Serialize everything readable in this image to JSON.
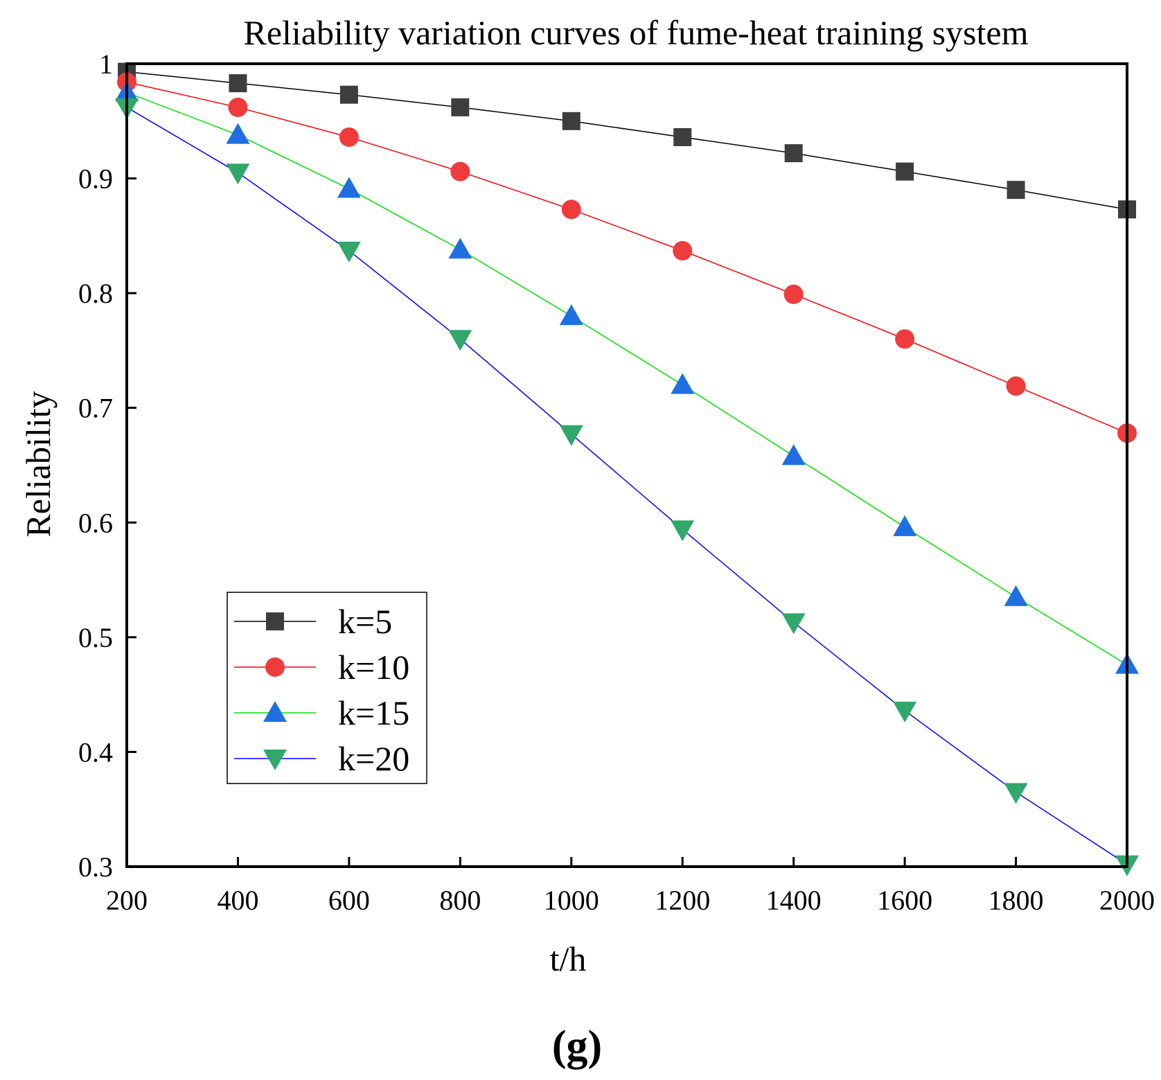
{
  "chart_data": {
    "type": "line",
    "title": "Reliability variation curves of fume-heat training system",
    "xlabel": "t/h",
    "ylabel": "Reliability",
    "panel_label": "(g)",
    "xlim": [
      200,
      2000
    ],
    "ylim": [
      0.3,
      1.0
    ],
    "xticks": [
      200,
      400,
      600,
      800,
      1000,
      1200,
      1400,
      1600,
      1800,
      2000
    ],
    "yticks": [
      0.3,
      0.4,
      0.5,
      0.6,
      0.7,
      0.8,
      0.9,
      1.0
    ],
    "ytick_labels": [
      "0.3",
      "0.4",
      "0.5",
      "0.6",
      "0.7",
      "0.8",
      "0.9",
      "1"
    ],
    "grid": false,
    "legend_position": "bottom-left",
    "x": [
      200,
      400,
      600,
      800,
      1000,
      1200,
      1400,
      1600,
      1800,
      2000
    ],
    "series": [
      {
        "name": "k=5",
        "marker": "square",
        "line_color": "#000000",
        "marker_color": "#3d3d3d",
        "values": [
          0.993,
          0.983,
          0.973,
          0.962,
          0.95,
          0.936,
          0.922,
          0.906,
          0.89,
          0.873
        ]
      },
      {
        "name": "k=10",
        "marker": "circle",
        "line_color": "#ff0000",
        "marker_color": "#ef3b3b",
        "values": [
          0.984,
          0.962,
          0.936,
          0.906,
          0.873,
          0.837,
          0.799,
          0.76,
          0.719,
          0.678
        ]
      },
      {
        "name": "k=15",
        "marker": "triangle-up",
        "line_color": "#00e000",
        "marker_color": "#1f6fe0",
        "values": [
          0.975,
          0.938,
          0.891,
          0.838,
          0.78,
          0.72,
          0.658,
          0.596,
          0.535,
          0.476
        ]
      },
      {
        "name": "k=20",
        "marker": "triangle-down",
        "line_color": "#0000ff",
        "marker_color": "#2fa86a",
        "values": [
          0.962,
          0.905,
          0.837,
          0.76,
          0.677,
          0.594,
          0.513,
          0.436,
          0.365,
          0.302
        ]
      }
    ]
  }
}
